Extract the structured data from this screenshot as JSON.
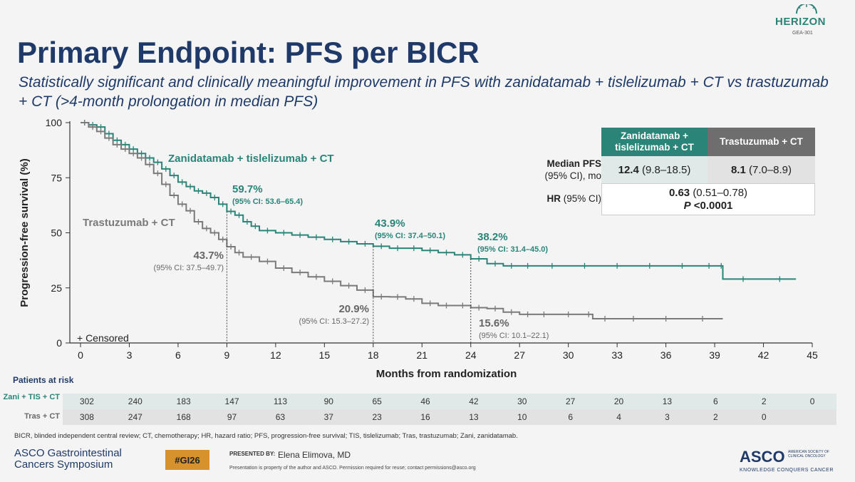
{
  "logo": {
    "word": "HERIZON",
    "sub": "GEA-301"
  },
  "title": "Primary Endpoint: PFS per BICR",
  "subtitle": "Statistically significant and clinically meaningful improvement in PFS with zanidatamab + tislelizumab + CT vs trastuzumab + CT (>4-month prolongation in median PFS)",
  "colors": {
    "zani": "#2a8478",
    "tras": "#7a7a7a",
    "title": "#1f3a68",
    "badge": "#d6922c"
  },
  "chart_data": {
    "type": "line",
    "xlabel": "Months from randomization",
    "ylabel": "Progression-free survival (%)",
    "xlim": [
      0,
      45
    ],
    "ylim": [
      0,
      100
    ],
    "xticks": [
      0,
      3,
      6,
      9,
      12,
      15,
      18,
      21,
      24,
      27,
      30,
      33,
      36,
      39,
      42,
      45
    ],
    "yticks": [
      0,
      25,
      50,
      75,
      100
    ],
    "censor_legend": "+ Censored",
    "series": [
      {
        "name": "Zanidatamab + tislelizumab + CT",
        "color": "#2a8478",
        "x": [
          0,
          0.5,
          1,
          1.5,
          2,
          2.5,
          3,
          3.5,
          4,
          4.5,
          5,
          5.5,
          6,
          6.5,
          7,
          7.5,
          8,
          8.5,
          9,
          9.5,
          10,
          10.5,
          11,
          12,
          13,
          14,
          15,
          16,
          17,
          18,
          19,
          20,
          21,
          22,
          23,
          24,
          25,
          26,
          27,
          28,
          30,
          32,
          34,
          36,
          38,
          39.3,
          39.5,
          42,
          44
        ],
        "y": [
          100,
          99,
          98,
          95,
          92,
          90,
          88,
          86,
          84,
          82,
          79,
          76,
          73,
          71,
          69,
          68,
          66,
          63,
          59.7,
          58,
          55,
          53,
          51,
          50,
          49,
          48,
          47,
          46,
          45,
          43.9,
          43,
          43,
          42,
          41,
          40,
          38.2,
          36,
          35,
          35,
          35,
          35,
          35,
          35,
          35,
          35,
          35,
          29,
          29,
          29
        ]
      },
      {
        "name": "Trastuzumab + CT",
        "color": "#7a7a7a",
        "x": [
          0,
          0.5,
          1,
          1.5,
          2,
          2.5,
          3,
          3.5,
          4,
          4.5,
          5,
          5.5,
          6,
          6.5,
          7,
          7.5,
          8,
          8.5,
          9,
          9.5,
          10,
          11,
          12,
          13,
          14,
          15,
          16,
          17,
          18,
          19,
          20,
          21,
          22,
          23,
          24,
          25,
          26,
          27,
          28,
          29,
          31,
          31.5,
          33,
          35,
          37,
          39.5
        ],
        "y": [
          100,
          98,
          96,
          93,
          90,
          88,
          86,
          84,
          81,
          77,
          72,
          67,
          63,
          60,
          55,
          52,
          50,
          47,
          43.7,
          41,
          39,
          37,
          34,
          32,
          30,
          28,
          26,
          24,
          21,
          20.9,
          20,
          18,
          17,
          17,
          16,
          15.6,
          14,
          13,
          13,
          13,
          13,
          11,
          11,
          11,
          11,
          11
        ]
      }
    ],
    "annotations": [
      {
        "series": "zani",
        "label": "59.7%",
        "ci": "(95% CI: 53.6–65.4)"
      },
      {
        "series": "zani",
        "label": "43.9%",
        "ci": "(95% CI: 37.4–50.1)"
      },
      {
        "series": "zani",
        "label": "38.2%",
        "ci": "(95% CI: 31.4–45.0)"
      },
      {
        "series": "tras",
        "label": "43.7%",
        "ci": "(95% CI: 37.5–49.7)"
      },
      {
        "series": "tras",
        "label": "20.9%",
        "ci": "(95% CI: 15.3–27.2)"
      },
      {
        "series": "tras",
        "label": "15.6%",
        "ci": "(95% CI: 10.1–22.1)"
      }
    ]
  },
  "summary_table": {
    "header_zani": "Zanidatamab + tislelizumab + CT",
    "header_tras": "Trastuzumab + CT",
    "row1_label_bold": "Median PFS",
    "row1_label_sub": "(95% CI), mo",
    "zani_median": "12.4",
    "zani_ci": "(9.8–18.5)",
    "tras_median": "8.1",
    "tras_ci": "(7.0–8.9)",
    "row2_label_bold": "HR",
    "row2_label_sub": "(95% CI)",
    "hr": "0.63",
    "hr_ci": "(0.51–0.78)",
    "p_label": "P",
    "p_value": "<0.0001"
  },
  "risk_table": {
    "title": "Patients at risk",
    "rows": [
      {
        "label": "Zani + TIS + CT",
        "values": [
          "302",
          "240",
          "183",
          "147",
          "113",
          "90",
          "65",
          "46",
          "42",
          "30",
          "27",
          "20",
          "13",
          "6",
          "2",
          "0"
        ]
      },
      {
        "label": "Tras + CT",
        "values": [
          "308",
          "247",
          "168",
          "97",
          "63",
          "37",
          "23",
          "16",
          "13",
          "10",
          "6",
          "4",
          "3",
          "2",
          "0",
          ""
        ]
      }
    ]
  },
  "footnote": "BICR, blinded independent central review; CT, chemotherapy; HR, hazard ratio; PFS, progression-free survival; TIS, tislelizumab; Tras, trastuzumab; Zani, zanidatamab.",
  "footer": {
    "asco_gi_line1": "ASCO Gastrointestinal",
    "asco_gi_line2": "Cancers Symposium",
    "badge": "#GI26",
    "presented_by": "PRESENTED BY:",
    "presenter": "Elena Elimova, MD",
    "disclaimer": "Presentation is property of the author and ASCO. Permission required for reuse; contact permissions@asco.org",
    "asco_logo": "ASCO",
    "asco_small": "AMERICAN SOCIETY OF CLINICAL ONCOLOGY",
    "asco_tag": "KNOWLEDGE CONQUERS CANCER"
  }
}
